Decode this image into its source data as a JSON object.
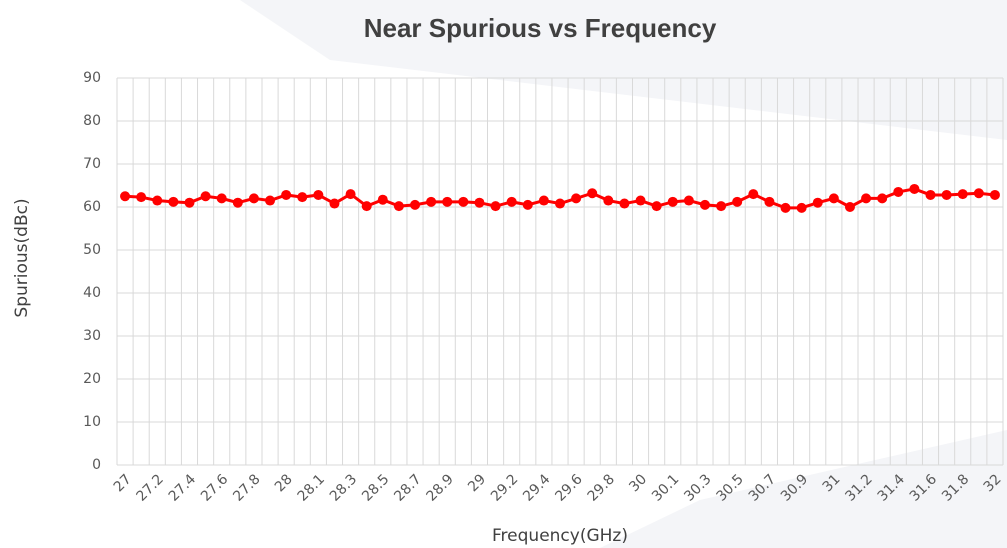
{
  "chart_data": {
    "type": "line",
    "title": "Near Spurious vs Frequency",
    "x_label": "Frequency(GHz)",
    "y_label": "Spurious(dBc)",
    "categories": [
      "27",
      null,
      "27.2",
      null,
      "27.4",
      null,
      "27.6",
      null,
      "27.8",
      null,
      "28",
      null,
      "28.1",
      null,
      "28.3",
      null,
      "28.5",
      null,
      "28.7",
      null,
      "28.9",
      null,
      "29",
      null,
      "29.2",
      null,
      "29.4",
      null,
      "29.6",
      null,
      "29.8",
      null,
      "30",
      null,
      "30.1",
      null,
      "30.3",
      null,
      "30.5",
      null,
      "30.7",
      null,
      "30.9",
      null,
      "31",
      null,
      "31.2",
      null,
      "31.4",
      null,
      "31.6",
      null,
      "31.8",
      null,
      "32"
    ],
    "series": [
      {
        "name": "Near Spurious",
        "color": "#ff0000",
        "values": [
          62.5,
          62.3,
          61.5,
          61.2,
          61,
          62.5,
          62,
          61,
          62,
          61.5,
          62.8,
          62.3,
          62.8,
          60.8,
          63,
          60.2,
          61.7,
          60.2,
          60.5,
          61.2,
          61.2,
          61.2,
          61,
          60.2,
          61.2,
          60.5,
          61.5,
          60.8,
          62,
          63.2,
          61.5,
          60.8,
          61.5,
          60.2,
          61.2,
          61.5,
          60.5,
          60.2,
          61.2,
          63,
          61.2,
          59.8,
          59.8,
          61,
          62,
          60,
          62,
          62,
          63.5,
          64.2,
          62.8,
          62.8,
          63,
          63.2,
          62.8
        ]
      }
    ],
    "ylim": [
      0,
      90
    ],
    "yticks": [
      0,
      10,
      20,
      30,
      40,
      50,
      60,
      70,
      80,
      90
    ],
    "grid": true
  }
}
